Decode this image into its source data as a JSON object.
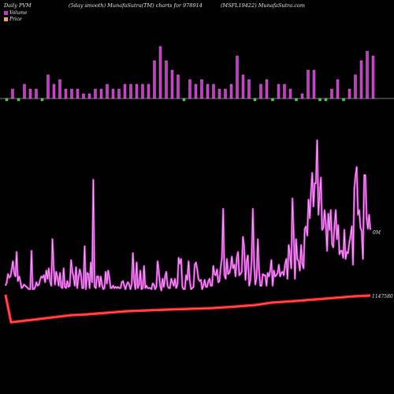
{
  "header": {
    "left": "Daily PVM",
    "center": "(5day smooth) MunafaSutra(TM) charts for 978914",
    "right": "(MSFL19422) MunafaSutra.com"
  },
  "legend": [
    {
      "label": "Volume",
      "color": "#cc33cc"
    },
    {
      "label": "Price",
      "color": "#f4a460"
    }
  ],
  "colors": {
    "volume_up": "#cc33cc",
    "volume_down": "#33cc33",
    "pvm_line": "#cc33cc",
    "price_line": "#ff2020",
    "baseline": "#888888"
  },
  "chart_data": {
    "type": "line",
    "series": [
      {
        "name": "Volume",
        "type": "bar",
        "values": [
          2,
          2,
          2,
          3,
          2,
          2,
          2,
          5,
          3,
          4,
          2,
          2,
          2,
          1,
          1,
          2,
          2,
          3,
          2,
          2,
          3,
          3,
          3,
          3,
          3,
          8,
          11,
          8,
          6,
          5,
          3,
          4,
          3,
          4,
          3,
          3,
          2,
          2,
          3,
          9,
          5,
          4,
          3,
          3,
          4,
          3,
          3,
          3,
          2,
          2,
          1,
          6,
          6,
          2,
          5,
          2,
          4,
          3,
          2,
          5,
          8,
          10,
          9
        ],
        "direction": [
          -1,
          1,
          -1,
          1,
          1,
          1,
          -1,
          1,
          1,
          1,
          1,
          1,
          1,
          1,
          1,
          1,
          1,
          1,
          1,
          1,
          1,
          1,
          1,
          1,
          1,
          1,
          1,
          1,
          1,
          1,
          -1,
          1,
          1,
          1,
          1,
          1,
          1,
          1,
          1,
          1,
          1,
          1,
          -1,
          1,
          1,
          -1,
          1,
          1,
          1,
          -1,
          1,
          1,
          1,
          -1,
          -1,
          1,
          1,
          -1,
          1,
          1,
          1,
          1,
          1
        ]
      },
      {
        "name": "PVM",
        "values": [
          5,
          8,
          15,
          12,
          13,
          19,
          26,
          16,
          13,
          34,
          9,
          13,
          9,
          3,
          4,
          6,
          5,
          4,
          3,
          2,
          2,
          35,
          2,
          2,
          4,
          8,
          5,
          6,
          10,
          13,
          12,
          14,
          8,
          18,
          11,
          20,
          9,
          5,
          45,
          20,
          6,
          17,
          12,
          5,
          16,
          4,
          3,
          20,
          4,
          3,
          9,
          4,
          5,
          27,
          17,
          13,
          5,
          21,
          3,
          12,
          19,
          15,
          3,
          3,
          39,
          2,
          16,
          15,
          3,
          25,
          8,
          96,
          4,
          3,
          13,
          13,
          4,
          13,
          6,
          2,
          3,
          17,
          7,
          18,
          12,
          3,
          3,
          5,
          3,
          4,
          3,
          4,
          3,
          3,
          8,
          9,
          5,
          2,
          6,
          8,
          6,
          2,
          6,
          33,
          10,
          2,
          25,
          3,
          6,
          18,
          2,
          3,
          22,
          3,
          5,
          3,
          3,
          3,
          2,
          7,
          6,
          2,
          4,
          26,
          17,
          5,
          1,
          11,
          4,
          13,
          17,
          5,
          3,
          3,
          11,
          8,
          5,
          11,
          3,
          6,
          29,
          24,
          28,
          4,
          2,
          2,
          14,
          10,
          26,
          9,
          2,
          3,
          4,
          23,
          25,
          19,
          11,
          9,
          10,
          2,
          5,
          10,
          4,
          4,
          9,
          11,
          5,
          5,
          22,
          15,
          14,
          19,
          8,
          9,
          21,
          29,
          71,
          14,
          11,
          28,
          15,
          16,
          20,
          30,
          20,
          23,
          13,
          29,
          34,
          14,
          15,
          17,
          47,
          38,
          10,
          26,
          31,
          5,
          10,
          26,
          71,
          23,
          6,
          12,
          45,
          19,
          5,
          5,
          15,
          14,
          14,
          5,
          16,
          13,
          18,
          27,
          5,
          18,
          13,
          14,
          16,
          23,
          13,
          16,
          17,
          14,
          23,
          28,
          11,
          40,
          31,
          20,
          80,
          50,
          11,
          45,
          28,
          26,
          18,
          40,
          24,
          20,
          54,
          56,
          48,
          79,
          63,
          85,
          102,
          73,
          93,
          93,
          130,
          66,
          85,
          98,
          53,
          55,
          70,
          58,
          35,
          67,
          53,
          70,
          41,
          38,
          57,
          70,
          45,
          57,
          32,
          35,
          35,
          29,
          53,
          28,
          34,
          33,
          42,
          48,
          56,
          23,
          88,
          100,
          107,
          66,
          70,
          55,
          52,
          28,
          100,
          100,
          63,
          54,
          66,
          53
        ]
      },
      {
        "name": "Price",
        "values": [
          1147580,
          1147580
        ]
      }
    ],
    "value_labels": {
      "volume_right": "0M",
      "price_right": "1147580"
    }
  }
}
